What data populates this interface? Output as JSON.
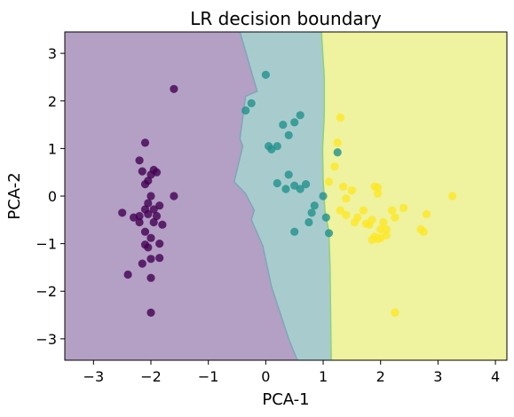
{
  "chart_data": {
    "type": "scatter",
    "title": "LR decision boundary",
    "xlabel": "PCA-1",
    "ylabel": "PCA-2",
    "xlim": [
      -3.5,
      4.2
    ],
    "ylim": [
      -3.45,
      3.45
    ],
    "xticks": [
      -3,
      -2,
      -1,
      0,
      1,
      2,
      3,
      4
    ],
    "yticks": [
      -3,
      -2,
      -1,
      0,
      1,
      2,
      3
    ],
    "xtick_labels": [
      "−3",
      "−2",
      "−1",
      "0",
      "1",
      "2",
      "3",
      "4"
    ],
    "ytick_labels": [
      "−3",
      "−2",
      "−1",
      "0",
      "1",
      "2",
      "3"
    ],
    "grid": false,
    "legend": "none",
    "regions": [
      {
        "class": 0,
        "color": "#b3a0c4"
      },
      {
        "class": 1,
        "color": "#a8cccd"
      },
      {
        "class": 2,
        "color": "#eff29e"
      }
    ],
    "boundaries": [
      {
        "between": [
          0,
          1
        ],
        "points": [
          [
            -0.45,
            3.45
          ],
          [
            -0.15,
            2.2
          ],
          [
            -0.35,
            2.1
          ],
          [
            -0.45,
            1.2
          ],
          [
            -0.4,
            1.05
          ],
          [
            -0.55,
            0.3
          ],
          [
            -0.35,
            0.05
          ],
          [
            -0.2,
            -0.3
          ],
          [
            -0.25,
            -0.5
          ],
          [
            -0.05,
            -1.05
          ],
          [
            0.1,
            -1.9
          ],
          [
            0.25,
            -2.45
          ],
          [
            0.4,
            -3.0
          ],
          [
            0.55,
            -3.45
          ]
        ]
      },
      {
        "between": [
          1,
          2
        ],
        "points": [
          [
            0.97,
            3.45
          ],
          [
            1.02,
            2.5
          ],
          [
            1.02,
            1.7
          ],
          [
            0.99,
            1.0
          ],
          [
            1.0,
            0.35
          ],
          [
            1.03,
            -0.3
          ],
          [
            1.1,
            -0.75
          ],
          [
            1.12,
            -1.5
          ],
          [
            1.14,
            -3.45
          ]
        ]
      }
    ],
    "series": [
      {
        "class": 0,
        "color": "#440154",
        "x": [
          -2.0,
          -1.6,
          -2.1,
          -2.2,
          -2.15,
          -1.95,
          -1.9,
          -2.05,
          -2.1,
          -2.0,
          -1.85,
          -2.05,
          -1.95,
          -1.6,
          -2.5,
          -2.3,
          -2.05,
          -1.9,
          -1.95,
          -1.8,
          -2.1,
          -2.2,
          -2.0,
          -2.1,
          -1.85,
          -2.0,
          -2.05,
          -2.2,
          -2.4,
          -2.15,
          -2.0,
          -1.85,
          -2.1,
          -2.0
        ],
        "y": [
          -2.45,
          2.25,
          1.12,
          0.75,
          0.52,
          0.55,
          0.5,
          0.32,
          0.25,
          0.0,
          -0.2,
          -0.15,
          -0.28,
          0.0,
          -0.35,
          -0.45,
          -0.38,
          -0.42,
          -0.55,
          -0.6,
          -0.75,
          -0.55,
          -0.88,
          -1.02,
          -1.3,
          -1.32,
          -1.08,
          -0.42,
          -1.65,
          -1.42,
          -1.72,
          -1.0,
          -0.28,
          0.45
        ]
      },
      {
        "class": 1,
        "color": "#21918c",
        "x": [
          0.0,
          -0.35,
          -0.25,
          0.3,
          0.2,
          0.6,
          0.5,
          0.4,
          0.05,
          0.1,
          0.4,
          0.5,
          0.2,
          0.35,
          0.6,
          0.7,
          0.8,
          0.85,
          0.75,
          0.5,
          1.0,
          1.05,
          1.1,
          1.25
        ],
        "y": [
          2.55,
          1.8,
          1.95,
          1.5,
          1.05,
          1.7,
          1.55,
          1.28,
          1.05,
          0.98,
          0.45,
          0.22,
          0.27,
          0.15,
          0.15,
          0.25,
          -0.35,
          -0.2,
          -0.55,
          -0.75,
          0.0,
          -0.45,
          -0.78,
          0.92
        ]
      },
      {
        "class": 2,
        "color": "#fde725",
        "x": [
          1.1,
          1.25,
          1.3,
          1.2,
          1.35,
          1.4,
          1.5,
          1.6,
          1.7,
          1.75,
          1.8,
          1.85,
          1.9,
          1.95,
          2.0,
          2.05,
          2.1,
          2.2,
          2.25,
          2.4,
          1.9,
          1.85,
          1.95,
          2.0,
          2.1,
          1.55,
          1.4,
          1.3,
          2.7,
          2.75,
          2.8,
          3.25,
          2.25,
          1.95
        ],
        "y": [
          0.3,
          1.12,
          1.65,
          0.62,
          0.2,
          -0.4,
          0.12,
          -0.45,
          -0.3,
          -0.58,
          -0.6,
          -0.5,
          0.2,
          0.05,
          -0.88,
          -0.55,
          -0.7,
          -0.3,
          -0.45,
          -0.25,
          -0.85,
          -0.92,
          -0.9,
          -0.7,
          -0.82,
          -0.55,
          -0.05,
          -0.3,
          -0.7,
          -0.75,
          -0.38,
          0.0,
          -2.45,
          0.18
        ]
      }
    ]
  }
}
